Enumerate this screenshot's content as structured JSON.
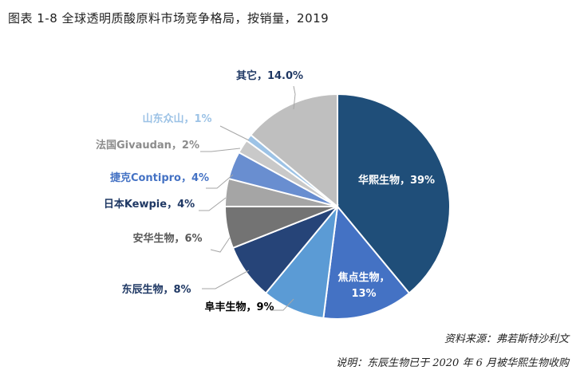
{
  "title": "图表 1-8 全球透明质酸原料市场竞争格局，按销量，2019",
  "source_note": "资料来源：弗若斯特沙利文",
  "remark": "说明：东辰生物已于 2020 年 6 月被华熙生物收购",
  "chart_data": {
    "type": "pie",
    "start": "12 o'clock, clockwise",
    "slices": [
      {
        "label": "华熙生物，39%",
        "value": 39,
        "color": "#1f4e79",
        "label_color": "#ffffff",
        "label_pos": "inside"
      },
      {
        "label": "焦点生物，\n13%",
        "value": 13,
        "color": "#4472c4",
        "label_color": "#ffffff",
        "label_pos": "inside"
      },
      {
        "label": "阜丰生物，9%",
        "value": 9,
        "color": "#5b9bd5",
        "label_color": "#000000",
        "label_pos": "outside"
      },
      {
        "label": "东辰生物，8%",
        "value": 8,
        "color": "#264478",
        "label_color": "#1f3864",
        "label_pos": "outside"
      },
      {
        "label": "安华生物，6%",
        "value": 6,
        "color": "#737373",
        "label_color": "#595959",
        "label_pos": "outside"
      },
      {
        "label": "日本Kewpie，4%",
        "value": 4,
        "color": "#a5a5a5",
        "label_color": "#1f3864",
        "label_pos": "outside"
      },
      {
        "label": "捷克Contipro，4%",
        "value": 4,
        "color": "#698ed0",
        "label_color": "#4472c4",
        "label_pos": "outside"
      },
      {
        "label": "法国Givaudan，2%",
        "value": 2,
        "color": "#c9c9c9",
        "label_color": "#8c8c8c",
        "label_pos": "outside"
      },
      {
        "label": "山东众山，1%",
        "value": 1,
        "color": "#9dc3e6",
        "label_color": "#9dc3e6",
        "label_pos": "outside"
      },
      {
        "label": "其它，14.0%",
        "value": 14,
        "color": "#bfbfbf",
        "label_color": "#1f3864",
        "label_pos": "outside"
      }
    ]
  }
}
